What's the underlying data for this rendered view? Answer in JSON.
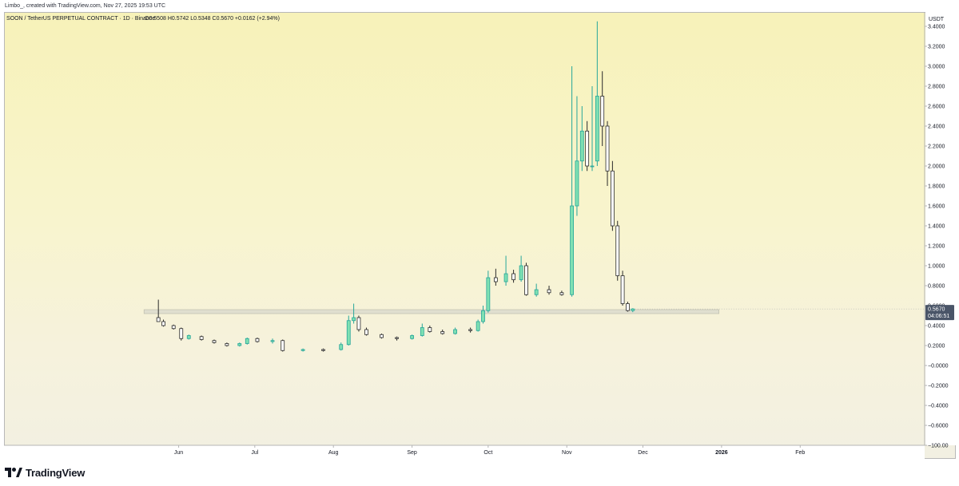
{
  "attribution": {
    "user": "Limbo_",
    "created_text": "created with TradingView.com, Nov 27, 2025 19:53 UTC"
  },
  "header": {
    "symbol_line": "SOON / TetherUS PERPETUAL CONTRACT · 1D · Binance",
    "ohlc": {
      "open_label": "O",
      "open": "0.5508",
      "high_label": "H",
      "high": "0.5742",
      "low_label": "L",
      "low": "0.5348",
      "close_label": "C",
      "close": "0.5670",
      "change": "+0.0162 (+2.94%)"
    }
  },
  "price_scale": {
    "currency": "USDT",
    "ticks": [
      "3.4000",
      "3.2000",
      "3.0000",
      "2.8000",
      "2.6000",
      "2.4000",
      "2.2000",
      "2.0000",
      "1.8000",
      "1.6000",
      "1.4000",
      "1.2000",
      "1.0000",
      "0.8000",
      "0.6000",
      "0.4000",
      "0.2000",
      "−0.0000",
      "−0.2000",
      "−0.4000",
      "−0.6000",
      "−100.00"
    ],
    "last_price": "0.5670",
    "countdown": "04:06:51"
  },
  "time_scale": {
    "ticks": [
      "Jun",
      "Jul",
      "Aug",
      "Sep",
      "Oct",
      "Nov",
      "Dec",
      "2026",
      "Feb"
    ],
    "bold_ticks": [
      "2026"
    ]
  },
  "branding": {
    "logo_text": "TradingView"
  },
  "colors": {
    "up": "#26a69a",
    "up_fill": "#7fe0b2",
    "down": "#2b2b2b",
    "support_band": "#d8d8cc",
    "label_bg": "#4a5568"
  },
  "chart_data": {
    "type": "candlestick",
    "title": "SOON / TetherUS PERPETUAL CONTRACT · 1D · Binance",
    "ylabel": "USDT",
    "ylim": [
      -1.0,
      3.4
    ],
    "x_range": [
      "2025-05-23",
      "2026-02-28"
    ],
    "grid": false,
    "support_zone": {
      "low": 0.52,
      "high": 0.56,
      "start": "2025-05-24",
      "end": "2025-12-31"
    },
    "candles": [
      {
        "date": "2025-05-24",
        "open": 0.48,
        "high": 0.66,
        "low": 0.44,
        "close": 0.44
      },
      {
        "date": "2025-05-26",
        "open": 0.44,
        "high": 0.46,
        "low": 0.39,
        "close": 0.4
      },
      {
        "date": "2025-05-30",
        "open": 0.4,
        "high": 0.41,
        "low": 0.36,
        "close": 0.37
      },
      {
        "date": "2025-06-02",
        "open": 0.37,
        "high": 0.38,
        "low": 0.25,
        "close": 0.27
      },
      {
        "date": "2025-06-05",
        "open": 0.27,
        "high": 0.31,
        "low": 0.26,
        "close": 0.3
      },
      {
        "date": "2025-06-10",
        "open": 0.29,
        "high": 0.3,
        "low": 0.25,
        "close": 0.26
      },
      {
        "date": "2025-06-15",
        "open": 0.25,
        "high": 0.26,
        "low": 0.22,
        "close": 0.23
      },
      {
        "date": "2025-06-20",
        "open": 0.22,
        "high": 0.23,
        "low": 0.19,
        "close": 0.2
      },
      {
        "date": "2025-06-25",
        "open": 0.2,
        "high": 0.23,
        "low": 0.19,
        "close": 0.22
      },
      {
        "date": "2025-06-28",
        "open": 0.22,
        "high": 0.28,
        "low": 0.21,
        "close": 0.27
      },
      {
        "date": "2025-07-02",
        "open": 0.27,
        "high": 0.28,
        "low": 0.23,
        "close": 0.24
      },
      {
        "date": "2025-07-08",
        "open": 0.24,
        "high": 0.27,
        "low": 0.22,
        "close": 0.25
      },
      {
        "date": "2025-07-12",
        "open": 0.25,
        "high": 0.26,
        "low": 0.14,
        "close": 0.15
      },
      {
        "date": "2025-07-20",
        "open": 0.15,
        "high": 0.17,
        "low": 0.14,
        "close": 0.16
      },
      {
        "date": "2025-07-28",
        "open": 0.16,
        "high": 0.17,
        "low": 0.14,
        "close": 0.15
      },
      {
        "date": "2025-08-04",
        "open": 0.16,
        "high": 0.23,
        "low": 0.15,
        "close": 0.21
      },
      {
        "date": "2025-08-07",
        "open": 0.21,
        "high": 0.5,
        "low": 0.2,
        "close": 0.45
      },
      {
        "date": "2025-08-09",
        "open": 0.45,
        "high": 0.62,
        "low": 0.42,
        "close": 0.48
      },
      {
        "date": "2025-08-11",
        "open": 0.48,
        "high": 0.5,
        "low": 0.34,
        "close": 0.36
      },
      {
        "date": "2025-08-14",
        "open": 0.36,
        "high": 0.38,
        "low": 0.3,
        "close": 0.31
      },
      {
        "date": "2025-08-20",
        "open": 0.31,
        "high": 0.32,
        "low": 0.27,
        "close": 0.28
      },
      {
        "date": "2025-08-26",
        "open": 0.28,
        "high": 0.29,
        "low": 0.25,
        "close": 0.27
      },
      {
        "date": "2025-09-01",
        "open": 0.27,
        "high": 0.31,
        "low": 0.26,
        "close": 0.3
      },
      {
        "date": "2025-09-05",
        "open": 0.3,
        "high": 0.42,
        "low": 0.29,
        "close": 0.38
      },
      {
        "date": "2025-09-08",
        "open": 0.38,
        "high": 0.4,
        "low": 0.33,
        "close": 0.34
      },
      {
        "date": "2025-09-13",
        "open": 0.34,
        "high": 0.36,
        "low": 0.31,
        "close": 0.32
      },
      {
        "date": "2025-09-18",
        "open": 0.32,
        "high": 0.38,
        "low": 0.31,
        "close": 0.36
      },
      {
        "date": "2025-09-24",
        "open": 0.36,
        "high": 0.38,
        "low": 0.33,
        "close": 0.35
      },
      {
        "date": "2025-09-27",
        "open": 0.35,
        "high": 0.46,
        "low": 0.34,
        "close": 0.44
      },
      {
        "date": "2025-09-29",
        "open": 0.44,
        "high": 0.6,
        "low": 0.42,
        "close": 0.55
      },
      {
        "date": "2025-10-01",
        "open": 0.55,
        "high": 0.95,
        "low": 0.53,
        "close": 0.88
      },
      {
        "date": "2025-10-04",
        "open": 0.88,
        "high": 0.97,
        "low": 0.8,
        "close": 0.84
      },
      {
        "date": "2025-10-08",
        "open": 0.84,
        "high": 1.1,
        "low": 0.8,
        "close": 0.92
      },
      {
        "date": "2025-10-11",
        "open": 0.92,
        "high": 0.96,
        "low": 0.83,
        "close": 0.86
      },
      {
        "date": "2025-10-14",
        "open": 0.86,
        "high": 1.1,
        "low": 0.84,
        "close": 1.0
      },
      {
        "date": "2025-10-16",
        "open": 1.0,
        "high": 1.03,
        "low": 0.7,
        "close": 0.71
      },
      {
        "date": "2025-10-20",
        "open": 0.71,
        "high": 0.82,
        "low": 0.69,
        "close": 0.76
      },
      {
        "date": "2025-10-25",
        "open": 0.76,
        "high": 0.8,
        "low": 0.71,
        "close": 0.73
      },
      {
        "date": "2025-10-30",
        "open": 0.73,
        "high": 0.75,
        "low": 0.7,
        "close": 0.71
      },
      {
        "date": "2025-11-03",
        "open": 0.71,
        "high": 3.0,
        "low": 0.69,
        "close": 1.6
      },
      {
        "date": "2025-11-05",
        "open": 1.6,
        "high": 2.7,
        "low": 1.5,
        "close": 2.05
      },
      {
        "date": "2025-11-07",
        "open": 2.05,
        "high": 2.6,
        "low": 1.95,
        "close": 2.35
      },
      {
        "date": "2025-11-09",
        "open": 2.35,
        "high": 2.45,
        "low": 1.95,
        "close": 2.0
      },
      {
        "date": "2025-11-11",
        "open": 2.0,
        "high": 2.8,
        "low": 1.95,
        "close": 2.0
      },
      {
        "date": "2025-11-13",
        "open": 2.05,
        "high": 3.45,
        "low": 2.0,
        "close": 2.7
      },
      {
        "date": "2025-11-15",
        "open": 2.7,
        "high": 2.95,
        "low": 2.2,
        "close": 2.4
      },
      {
        "date": "2025-11-17",
        "open": 2.4,
        "high": 2.45,
        "low": 1.8,
        "close": 1.95
      },
      {
        "date": "2025-11-19",
        "open": 1.95,
        "high": 2.05,
        "low": 1.35,
        "close": 1.4
      },
      {
        "date": "2025-11-21",
        "open": 1.4,
        "high": 1.45,
        "low": 0.85,
        "close": 0.9
      },
      {
        "date": "2025-11-23",
        "open": 0.9,
        "high": 0.95,
        "low": 0.6,
        "close": 0.62
      },
      {
        "date": "2025-11-25",
        "open": 0.62,
        "high": 0.64,
        "low": 0.54,
        "close": 0.5508
      },
      {
        "date": "2025-11-27",
        "open": 0.5508,
        "high": 0.5742,
        "low": 0.5348,
        "close": 0.567
      }
    ]
  }
}
